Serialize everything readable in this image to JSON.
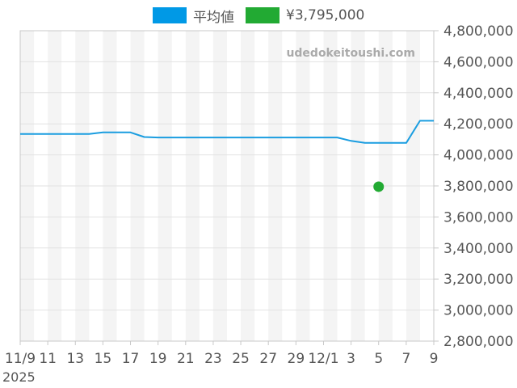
{
  "chart_data": {
    "type": "line",
    "title": "",
    "xlabel": "",
    "ylabel": "",
    "watermark": "udedokeitoushi.com",
    "grid": true,
    "legend_placement": "top",
    "background_bands": "alternating gray every other day",
    "ylim": [
      2800000,
      4800000
    ],
    "y_ticks": [
      "2,800,000",
      "3,000,000",
      "3,200,000",
      "3,400,000",
      "3,600,000",
      "3,800,000",
      "4,000,000",
      "4,200,000",
      "4,400,000",
      "4,600,000",
      "4,800,000"
    ],
    "y_tick_values": [
      2800000,
      3000000,
      3200000,
      3400000,
      3600000,
      3800000,
      4000000,
      4200000,
      4400000,
      4600000,
      4800000
    ],
    "xlim": [
      "2025-11-09",
      "2025-12-09"
    ],
    "x_ticks": [
      {
        "date": "2025-11-09",
        "label": "11/9"
      },
      {
        "date": "2025-11-11",
        "label": "11"
      },
      {
        "date": "2025-11-13",
        "label": "13"
      },
      {
        "date": "2025-11-15",
        "label": "15"
      },
      {
        "date": "2025-11-17",
        "label": "17"
      },
      {
        "date": "2025-11-19",
        "label": "19"
      },
      {
        "date": "2025-11-21",
        "label": "21"
      },
      {
        "date": "2025-11-23",
        "label": "23"
      },
      {
        "date": "2025-11-25",
        "label": "25"
      },
      {
        "date": "2025-11-27",
        "label": "27"
      },
      {
        "date": "2025-11-29",
        "label": "29"
      },
      {
        "date": "2025-12-01",
        "label": "12/1"
      },
      {
        "date": "2025-12-03",
        "label": "3"
      },
      {
        "date": "2025-12-05",
        "label": "5"
      },
      {
        "date": "2025-12-07",
        "label": "7"
      },
      {
        "date": "2025-12-09",
        "label": "9"
      }
    ],
    "year_label": "2025",
    "series": [
      {
        "name": "平均値",
        "color": "#1a9de0",
        "swatch_color": "#0099e6",
        "style": "line",
        "points": [
          {
            "x": "2025-11-09",
            "y": 4135000
          },
          {
            "x": "2025-11-14",
            "y": 4135000
          },
          {
            "x": "2025-11-15",
            "y": 4145000
          },
          {
            "x": "2025-11-17",
            "y": 4145000
          },
          {
            "x": "2025-11-18",
            "y": 4115000
          },
          {
            "x": "2025-11-19",
            "y": 4112000
          },
          {
            "x": "2025-12-02",
            "y": 4112000
          },
          {
            "x": "2025-12-03",
            "y": 4090000
          },
          {
            "x": "2025-12-04",
            "y": 4077000
          },
          {
            "x": "2025-12-07",
            "y": 4077000
          },
          {
            "x": "2025-12-08",
            "y": 4220000
          },
          {
            "x": "2025-12-09",
            "y": 4220000
          }
        ]
      },
      {
        "name": "¥3,795,000",
        "color": "#22aa33",
        "swatch_color": "#22aa33",
        "style": "scatter",
        "points": [
          {
            "x": "2025-12-05",
            "y": 3795000
          }
        ]
      }
    ]
  }
}
